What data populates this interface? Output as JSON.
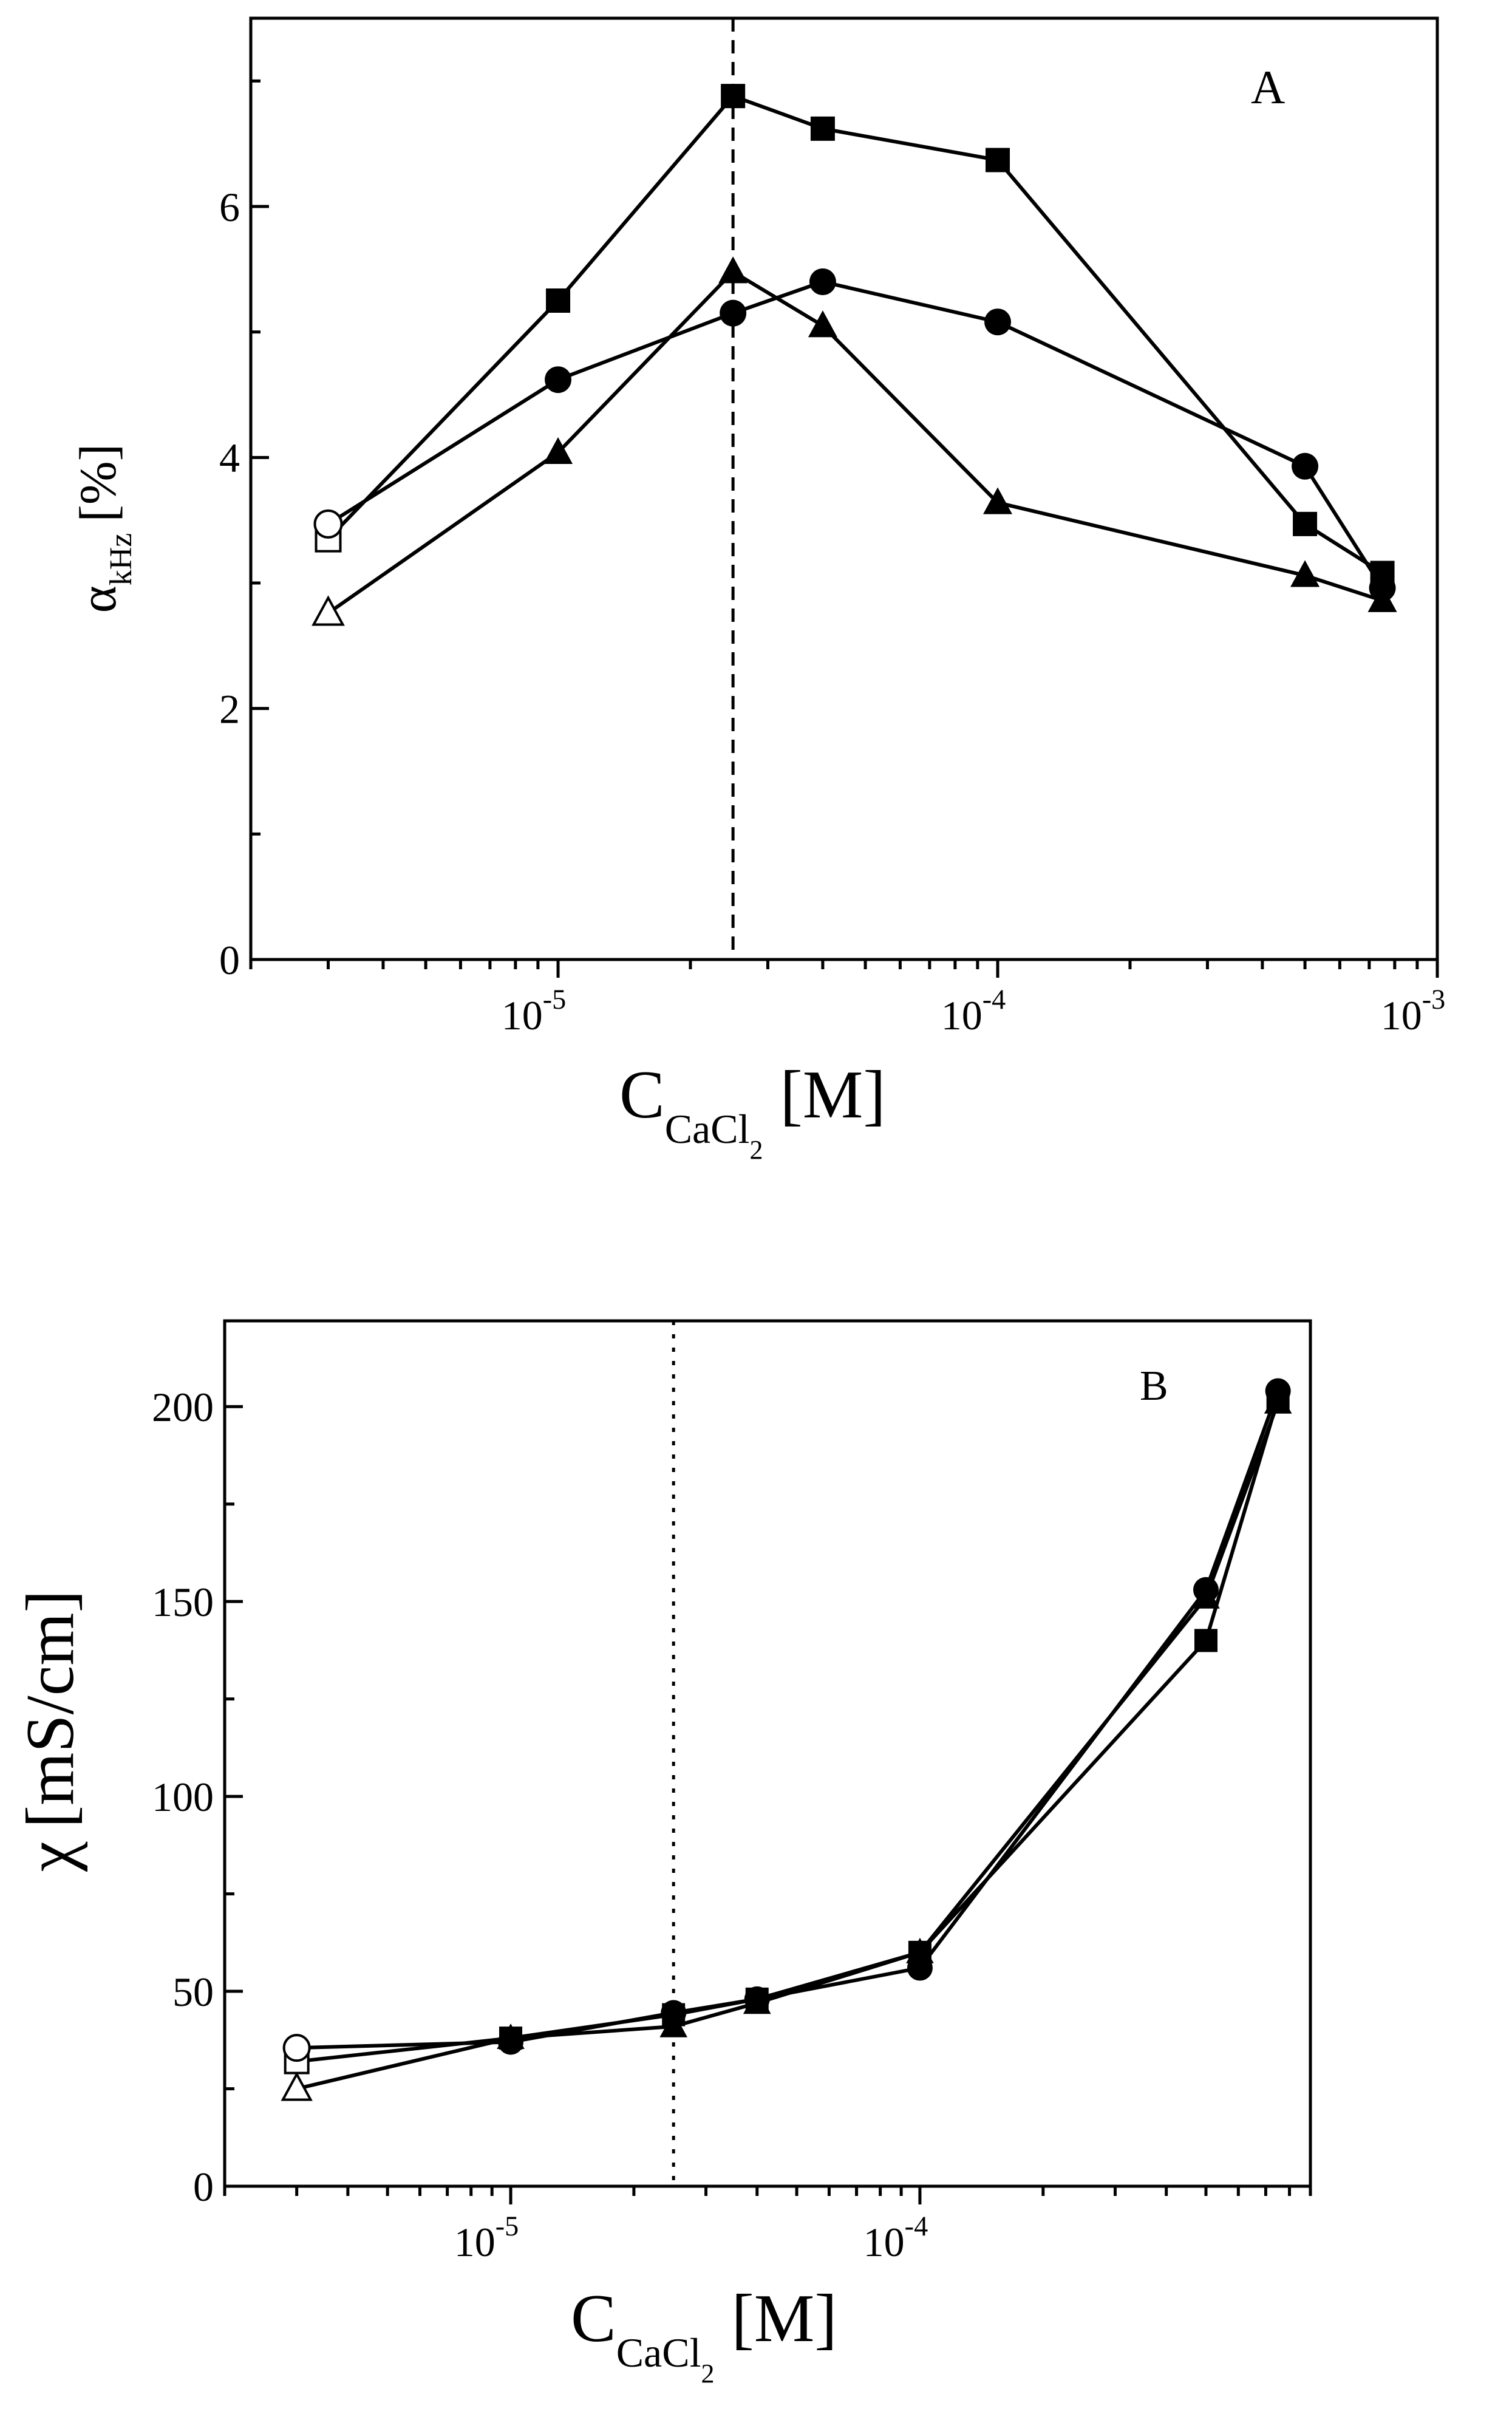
{
  "chart_data": [
    {
      "panel": "A",
      "type": "line",
      "panel_label": "A",
      "xscale": "log",
      "xlim": [
        2e-06,
        0.001
      ],
      "ylim": [
        0,
        7.5
      ],
      "xlabel": {
        "main": "C",
        "sub": "CaCl",
        "subsub": "2",
        "unit": "[M]"
      },
      "ylabel": {
        "main": "α",
        "sub": "kHz",
        "unit": "[%]"
      },
      "yticks": [
        0,
        2,
        4,
        6
      ],
      "ytick_labels": [
        "0",
        "2",
        "4",
        "6"
      ],
      "xticks": [
        1e-05,
        0.0001,
        0.001
      ],
      "xtick_labels": [
        {
          "base": "10",
          "exp": "-5"
        },
        {
          "base": "10",
          "exp": "-4"
        },
        {
          "base": "10",
          "exp": "-3"
        }
      ],
      "reference_line": {
        "x": 2.5e-05,
        "style": "dashed"
      },
      "series": [
        {
          "name": "squares",
          "marker": "square",
          "x": [
            3e-06,
            1e-05,
            2.5e-05,
            4e-05,
            0.0001,
            0.0005,
            0.00075
          ],
          "y": [
            3.35,
            5.25,
            6.88,
            6.62,
            6.37,
            3.47,
            3.08
          ],
          "open_first": true
        },
        {
          "name": "circles",
          "marker": "circle",
          "x": [
            3e-06,
            1e-05,
            2.5e-05,
            4e-05,
            0.0001,
            0.0005,
            0.00075
          ],
          "y": [
            3.47,
            4.62,
            5.15,
            5.4,
            5.08,
            3.93,
            2.96
          ],
          "open_first": true
        },
        {
          "name": "triangles",
          "marker": "triangle",
          "x": [
            3e-06,
            1e-05,
            2.5e-05,
            4e-05,
            0.0001,
            0.0005,
            0.00075
          ],
          "y": [
            2.76,
            4.04,
            5.48,
            5.05,
            3.64,
            3.06,
            2.86
          ],
          "open_first": true
        }
      ]
    },
    {
      "panel": "B",
      "type": "line",
      "panel_label": "B",
      "xscale": "log",
      "xlim": [
        2e-06,
        0.0009
      ],
      "ylim": [
        0,
        222
      ],
      "xlabel": {
        "main": "C",
        "sub": "CaCl",
        "subsub": "2",
        "unit": "[M]"
      },
      "ylabel": {
        "main": "χ",
        "unit": "[mS/cm]"
      },
      "yticks": [
        0,
        50,
        100,
        150,
        200
      ],
      "ytick_labels": [
        "0",
        "50",
        "100",
        "150",
        "200"
      ],
      "xticks": [
        1e-05,
        0.0001
      ],
      "xtick_labels": [
        {
          "base": "10",
          "exp": "-5"
        },
        {
          "base": "10",
          "exp": "-4"
        }
      ],
      "reference_line": {
        "x": 2.5e-05,
        "style": "dotted"
      },
      "series": [
        {
          "name": "squares",
          "marker": "square",
          "x": [
            3e-06,
            1e-05,
            2.5e-05,
            4e-05,
            0.0001,
            0.0005,
            0.00075
          ],
          "y": [
            32,
            38,
            44,
            48,
            60,
            140,
            202
          ],
          "open_first": true
        },
        {
          "name": "circles",
          "marker": "circle",
          "x": [
            3e-06,
            1e-05,
            2.5e-05,
            4e-05,
            0.0001,
            0.0005,
            0.00075
          ],
          "y": [
            35.5,
            37,
            44.5,
            48,
            56,
            153,
            204
          ],
          "open_first": true
        },
        {
          "name": "triangles",
          "marker": "triangle",
          "x": [
            3e-06,
            1e-05,
            2.5e-05,
            4e-05,
            0.0001,
            0.0005,
            0.00075
          ],
          "y": [
            25,
            38,
            41,
            47,
            60,
            151,
            201
          ],
          "open_first": true
        }
      ]
    }
  ]
}
